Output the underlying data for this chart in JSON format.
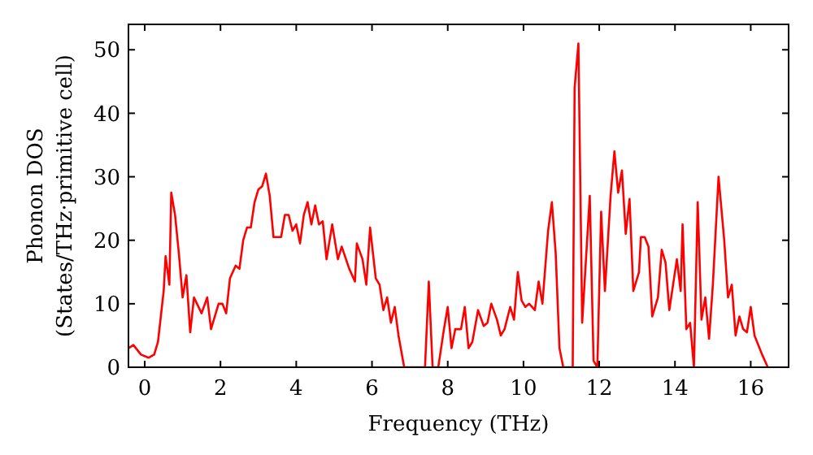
{
  "chart_data": {
    "type": "line",
    "xlabel": "Frequency (THz)",
    "ylabel": "Phonon DOS\n(States/THz·primitive cell)",
    "xlim": [
      -0.43,
      17
    ],
    "ylim": [
      0,
      54
    ],
    "xticks": [
      0,
      2,
      4,
      6,
      8,
      10,
      12,
      14,
      16
    ],
    "yticks": [
      0,
      10,
      20,
      30,
      40,
      50
    ],
    "grid": false,
    "marker": "none",
    "line_style": "solid",
    "series": [
      {
        "color": "#ff0000",
        "x": [
          -0.43,
          -0.3,
          -0.1,
          0.1,
          0.25,
          0.35,
          0.5,
          0.55,
          0.65,
          0.7,
          0.8,
          0.9,
          1.0,
          1.1,
          1.2,
          1.3,
          1.5,
          1.65,
          1.75,
          1.95,
          2.05,
          2.15,
          2.25,
          2.4,
          2.5,
          2.6,
          2.7,
          2.8,
          2.9,
          3.0,
          3.1,
          3.2,
          3.3,
          3.4,
          3.6,
          3.7,
          3.8,
          3.9,
          4.0,
          4.1,
          4.2,
          4.3,
          4.4,
          4.5,
          4.6,
          4.7,
          4.8,
          4.95,
          5.1,
          5.2,
          5.4,
          5.55,
          5.6,
          5.75,
          5.85,
          5.95,
          6.1,
          6.2,
          6.3,
          6.4,
          6.5,
          6.6,
          6.7,
          6.85,
          7.4,
          7.5,
          7.6,
          7.75,
          7.9,
          8.0,
          8.1,
          8.2,
          8.35,
          8.45,
          8.55,
          8.65,
          8.8,
          8.95,
          9.05,
          9.15,
          9.3,
          9.4,
          9.5,
          9.65,
          9.75,
          9.85,
          9.95,
          10.05,
          10.15,
          10.3,
          10.4,
          10.5,
          10.65,
          10.75,
          10.85,
          10.95,
          11.05,
          11.3,
          11.35,
          11.45,
          11.55,
          11.75,
          11.85,
          11.95,
          12.05,
          12.15,
          12.3,
          12.4,
          12.5,
          12.6,
          12.7,
          12.8,
          12.9,
          13.05,
          13.1,
          13.2,
          13.3,
          13.4,
          13.55,
          13.65,
          13.75,
          13.85,
          13.95,
          14.05,
          14.15,
          14.2,
          14.3,
          14.4,
          14.5,
          14.6,
          14.7,
          14.8,
          14.9,
          15.0,
          15.15,
          15.3,
          15.4,
          15.5,
          15.6,
          15.7,
          15.8,
          15.9,
          16.0,
          16.1,
          16.3,
          16.45
        ],
        "values": [
          3,
          3.5,
          2,
          1.5,
          2,
          4,
          12,
          17.5,
          13,
          27.5,
          24,
          18,
          11,
          14.5,
          5.5,
          11,
          8.5,
          11,
          6,
          10,
          10,
          8.5,
          14,
          16,
          15.5,
          20,
          22,
          22,
          26,
          28,
          28.5,
          30.5,
          27,
          20.5,
          20.5,
          24,
          24,
          21.5,
          22.5,
          19.5,
          24,
          26,
          22.5,
          25.5,
          22.5,
          23,
          17,
          22.5,
          17,
          19,
          15.5,
          13.5,
          19.5,
          17,
          13,
          22,
          14,
          13,
          9,
          11,
          7,
          9.5,
          5,
          0,
          0,
          13.5,
          0,
          0,
          6,
          9.5,
          3,
          6,
          6,
          9.5,
          3,
          4,
          9,
          6.5,
          7,
          10,
          7.5,
          5,
          6,
          9.5,
          7.5,
          15,
          10.5,
          9.5,
          10,
          9,
          13.5,
          10,
          21.5,
          26,
          18,
          3,
          0,
          0,
          44,
          51,
          7,
          27,
          1,
          0,
          24.5,
          12,
          27,
          34,
          27.5,
          31,
          21,
          26.5,
          12,
          15,
          20.5,
          20.5,
          19,
          8,
          11,
          18.5,
          16.5,
          9,
          13,
          17,
          12,
          22.5,
          6,
          7,
          0,
          26,
          7.5,
          11,
          4.5,
          13,
          30,
          20,
          11,
          13,
          5,
          8,
          6,
          5.5,
          9.5,
          5,
          2,
          0
        ]
      }
    ]
  }
}
